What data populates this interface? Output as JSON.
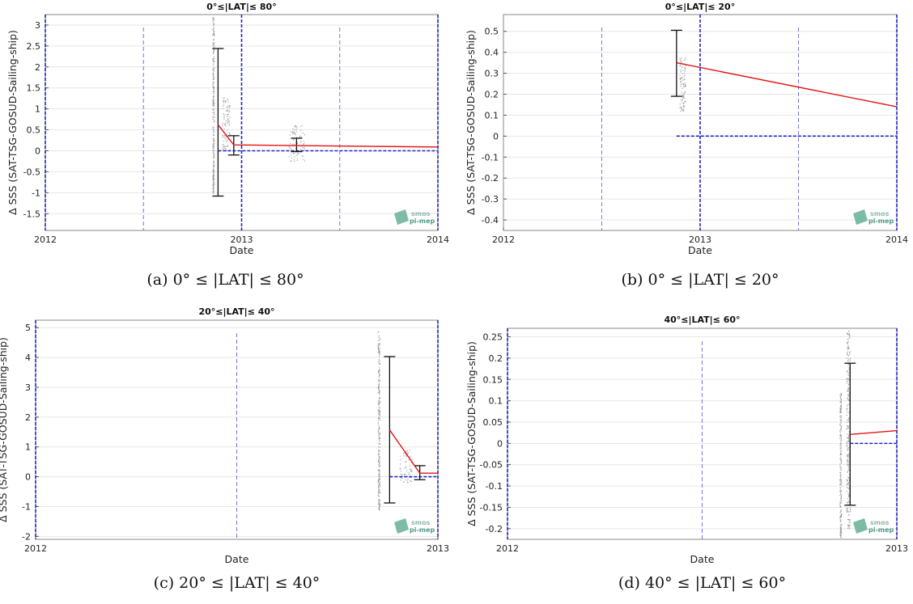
{
  "chart_data": [
    {
      "type": "line",
      "title": "0°≤|LAT|≤ 80°",
      "caption": "(a) 0° ≤ |LAT| ≤ 80°",
      "xlabel": "Date",
      "ylabel": "Δ SSS (SAT-TSG-GOSUD-Sailing-ship)",
      "xlim": [
        2012,
        2014
      ],
      "ylim": [
        -1.9,
        3.25
      ],
      "x_ticks": [
        {
          "v": 2012,
          "label": "2012"
        },
        {
          "v": 2013,
          "label": "2013"
        },
        {
          "v": 2014,
          "label": "2014"
        }
      ],
      "y_ticks": [
        {
          "v": 3,
          "label": "3"
        },
        {
          "v": 2.5,
          "label": "2.5"
        },
        {
          "v": 2,
          "label": "2"
        },
        {
          "v": 1.5,
          "label": "1.5"
        },
        {
          "v": 1,
          "label": "1"
        },
        {
          "v": 0.5,
          "label": "0.5"
        },
        {
          "v": 0,
          "label": "0"
        },
        {
          "v": -0.5,
          "label": "-0.5"
        },
        {
          "v": -1,
          "label": "-1"
        },
        {
          "v": -1.5,
          "label": "-1.5"
        }
      ],
      "vlines": [
        2012.5,
        2013.5
      ],
      "vlines_bold": [
        2012,
        2013,
        2014
      ],
      "zero_line": {
        "x0": 2012.88,
        "x1": 2014,
        "y": 0
      },
      "series": [
        {
          "x": [
            2012.88,
            2012.96,
            2014
          ],
          "y": [
            0.62,
            0.14,
            0.09
          ]
        }
      ],
      "error_bars": [
        {
          "x": 2012.88,
          "low": -1.08,
          "high": 2.44
        },
        {
          "x": 2012.96,
          "low": -0.1,
          "high": 0.36
        },
        {
          "x": 2013.28,
          "low": -0.02,
          "high": 0.3
        }
      ],
      "scatter_clusters": [
        {
          "x": 2012.855,
          "y0": -1.0,
          "y1": 3.2,
          "w": 0.008
        },
        {
          "x": 2012.92,
          "y0": 0.0,
          "y1": 1.3,
          "w": 0.04
        },
        {
          "x": 2013.28,
          "y0": -0.25,
          "y1": 0.65,
          "w": 0.08
        }
      ],
      "logo": [
        "smos",
        "pi-mep"
      ]
    },
    {
      "type": "line",
      "title": "0°≤|LAT|≤ 20°",
      "caption": "(b) 0° ≤ |LAT| ≤ 20°",
      "xlabel": "Date",
      "ylabel": "Δ SSS (SAT-TSG-GOSUD-Sailing-ship)",
      "xlim": [
        2012,
        2014
      ],
      "ylim": [
        -0.45,
        0.58
      ],
      "x_ticks": [
        {
          "v": 2012,
          "label": "2012"
        },
        {
          "v": 2013,
          "label": "2013"
        },
        {
          "v": 2014,
          "label": "2014"
        }
      ],
      "y_ticks": [
        {
          "v": 0.5,
          "label": "0.5"
        },
        {
          "v": 0.4,
          "label": "0.4"
        },
        {
          "v": 0.3,
          "label": "0.3"
        },
        {
          "v": 0.2,
          "label": "0.2"
        },
        {
          "v": 0.1,
          "label": "0.1"
        },
        {
          "v": 0,
          "label": "0"
        },
        {
          "v": -0.1,
          "label": "-0.1"
        },
        {
          "v": -0.2,
          "label": "-0.2"
        },
        {
          "v": -0.3,
          "label": "-0.3"
        },
        {
          "v": -0.4,
          "label": "-0.4"
        }
      ],
      "vlines": [
        2012.5,
        2013.5
      ],
      "vlines_bold": [
        2013,
        2014
      ],
      "zero_line": {
        "x0": 2012.88,
        "x1": 2014,
        "y": 0
      },
      "series": [
        {
          "x": [
            2012.88,
            2014
          ],
          "y": [
            0.35,
            0.14
          ]
        }
      ],
      "error_bars": [
        {
          "x": 2012.88,
          "low": 0.19,
          "high": 0.505
        }
      ],
      "scatter_clusters": [
        {
          "x": 2012.91,
          "y0": 0.12,
          "y1": 0.38,
          "w": 0.03
        }
      ],
      "logo": [
        "smos",
        "pi-mep"
      ]
    },
    {
      "type": "line",
      "title": "20°≤|LAT|≤ 40°",
      "caption": "(c) 20° ≤ |LAT| ≤ 40°",
      "xlabel": "Date",
      "ylabel": "Δ SSS (SAT-TSG-GOSUD-Sailing-ship)",
      "xlim": [
        2012,
        2013
      ],
      "ylim": [
        -2.1,
        5.25
      ],
      "x_ticks": [
        {
          "v": 2012,
          "label": "2012"
        },
        {
          "v": 2013,
          "label": "2013"
        }
      ],
      "y_ticks": [
        {
          "v": 5,
          "label": "5"
        },
        {
          "v": 4,
          "label": "4"
        },
        {
          "v": 3,
          "label": "3"
        },
        {
          "v": 2,
          "label": "2"
        },
        {
          "v": 1,
          "label": "1"
        },
        {
          "v": 0,
          "label": "0"
        },
        {
          "v": -1,
          "label": "-1"
        },
        {
          "v": -2,
          "label": "-2"
        }
      ],
      "vlines": [
        2012.5
      ],
      "vlines_bold": [
        2012,
        2013
      ],
      "zero_line": {
        "x0": 2012.88,
        "x1": 2013,
        "y": 0
      },
      "series": [
        {
          "x": [
            2012.88,
            2012.955,
            2013
          ],
          "y": [
            1.57,
            0.12,
            0.12
          ]
        }
      ],
      "error_bars": [
        {
          "x": 2012.88,
          "low": -0.88,
          "high": 4.03
        },
        {
          "x": 2012.955,
          "low": -0.1,
          "high": 0.37
        }
      ],
      "scatter_clusters": [
        {
          "x": 2012.853,
          "y0": -1.1,
          "y1": 4.9,
          "w": 0.005
        },
        {
          "x": 2012.92,
          "y0": -0.2,
          "y1": 0.9,
          "w": 0.03
        }
      ],
      "logo": [
        "smos",
        "pi-mep"
      ]
    },
    {
      "type": "line",
      "title": "40°≤|LAT|≤ 60°",
      "caption": "(d) 40° ≤ |LAT| ≤ 60°",
      "xlabel": "Date",
      "ylabel": "Δ SSS (SAT-TSG-GOSUD-Sailing-ship)",
      "xlim": [
        2012,
        2013
      ],
      "ylim": [
        -0.225,
        0.27
      ],
      "x_ticks": [
        {
          "v": 2012,
          "label": "2012"
        },
        {
          "v": 2013,
          "label": "2013"
        }
      ],
      "y_ticks": [
        {
          "v": 0.25,
          "label": "0.25"
        },
        {
          "v": 0.2,
          "label": "0.2"
        },
        {
          "v": 0.15,
          "label": "0.15"
        },
        {
          "v": 0.1,
          "label": "0.1"
        },
        {
          "v": 0.05,
          "label": "0.05"
        },
        {
          "v": 0,
          "label": "0"
        },
        {
          "v": -0.05,
          "label": "-0.05"
        },
        {
          "v": -0.1,
          "label": "-0.1"
        },
        {
          "v": -0.15,
          "label": "-0.15"
        },
        {
          "v": -0.2,
          "label": "-0.2"
        }
      ],
      "vlines": [
        2012.5
      ],
      "vlines_bold": [
        2012,
        2013
      ],
      "zero_line": {
        "x0": 2012.88,
        "x1": 2013,
        "y": 0
      },
      "series": [
        {
          "x": [
            2012.88,
            2013
          ],
          "y": [
            0.021,
            0.03
          ]
        }
      ],
      "error_bars": [
        {
          "x": 2012.88,
          "low": -0.145,
          "high": 0.188
        }
      ],
      "scatter_clusters": [
        {
          "x": 2012.855,
          "y0": -0.22,
          "y1": 0.12,
          "w": 0.004
        },
        {
          "x": 2012.875,
          "y0": -0.2,
          "y1": 0.27,
          "w": 0.01
        }
      ],
      "logo": [
        "smos",
        "pi-mep"
      ]
    }
  ]
}
